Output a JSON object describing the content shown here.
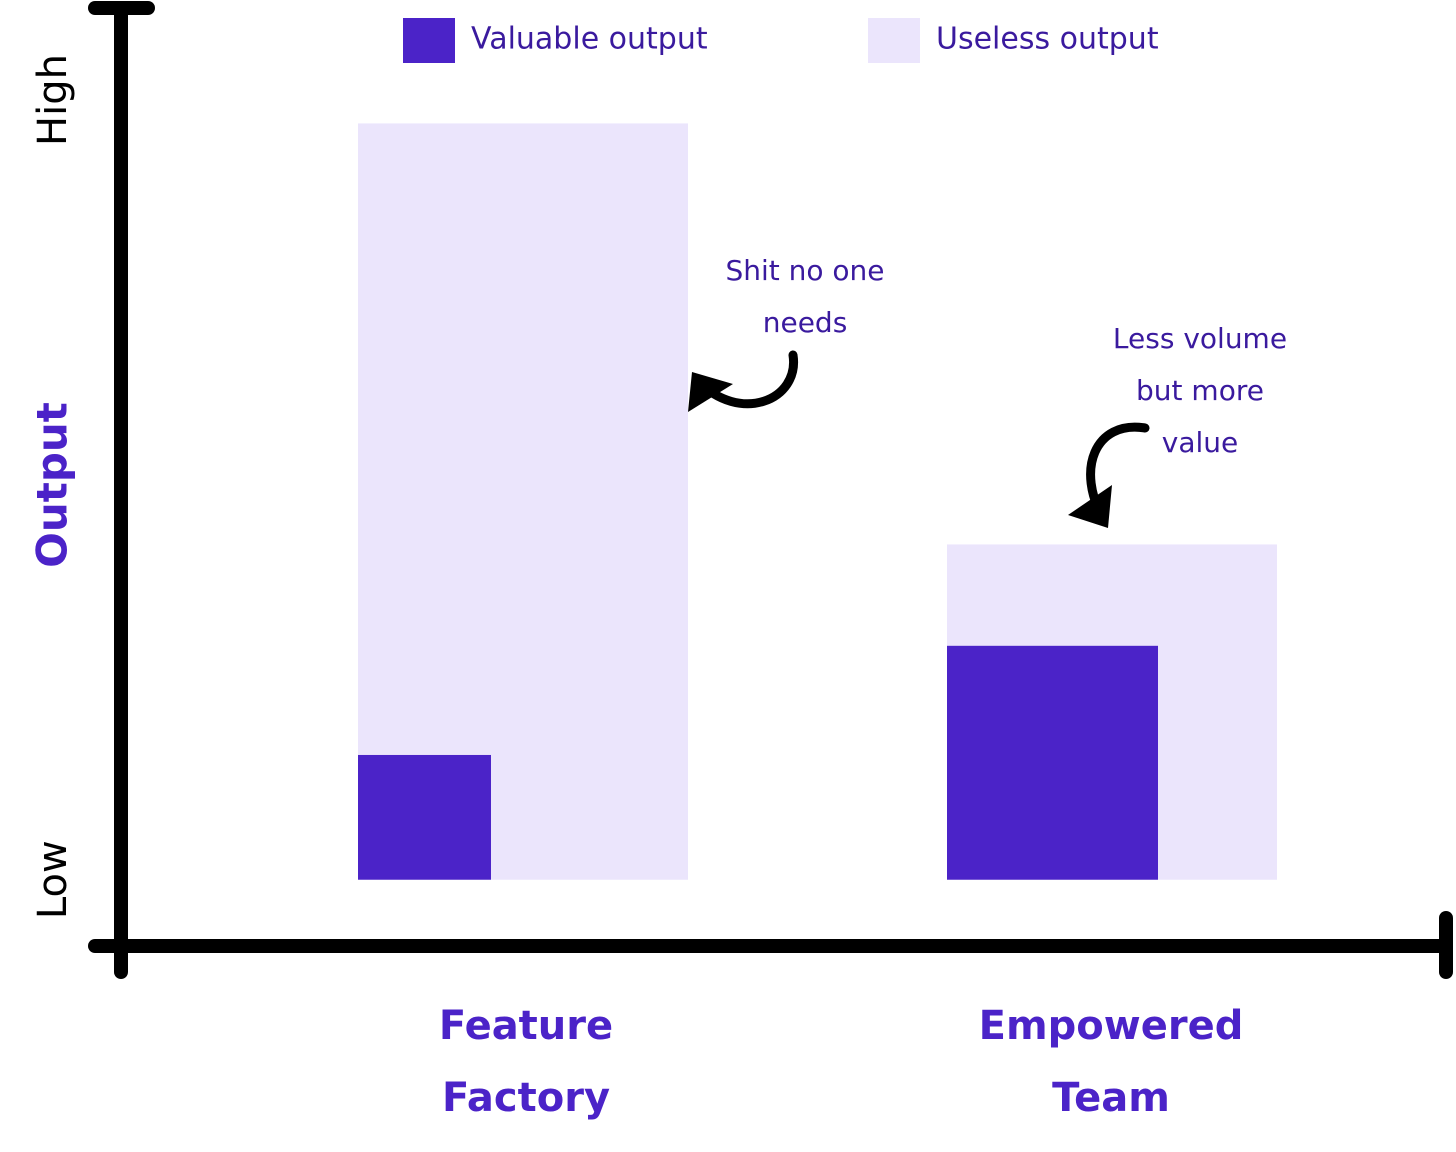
{
  "chart_data": {
    "type": "bar",
    "y_label": "Output",
    "categories": [
      "Feature Factory",
      "Empowered Team"
    ],
    "series": [
      {
        "name": "Valuable output",
        "color": "#4b23c8",
        "values": [
          16,
          30
        ]
      },
      {
        "name": "Useless output",
        "color": "#ebe5fc",
        "values": [
          97,
          43
        ]
      }
    ],
    "ylim": [
      -8.5,
      111.8
    ],
    "yticks": [
      {
        "value": 0,
        "label": "Low"
      },
      {
        "value": 100,
        "label": "High"
      }
    ],
    "annotations": [
      {
        "lines": [
          "Shit no one",
          "needs"
        ]
      },
      {
        "lines": [
          "Less volume",
          "but more",
          "value"
        ]
      }
    ]
  }
}
